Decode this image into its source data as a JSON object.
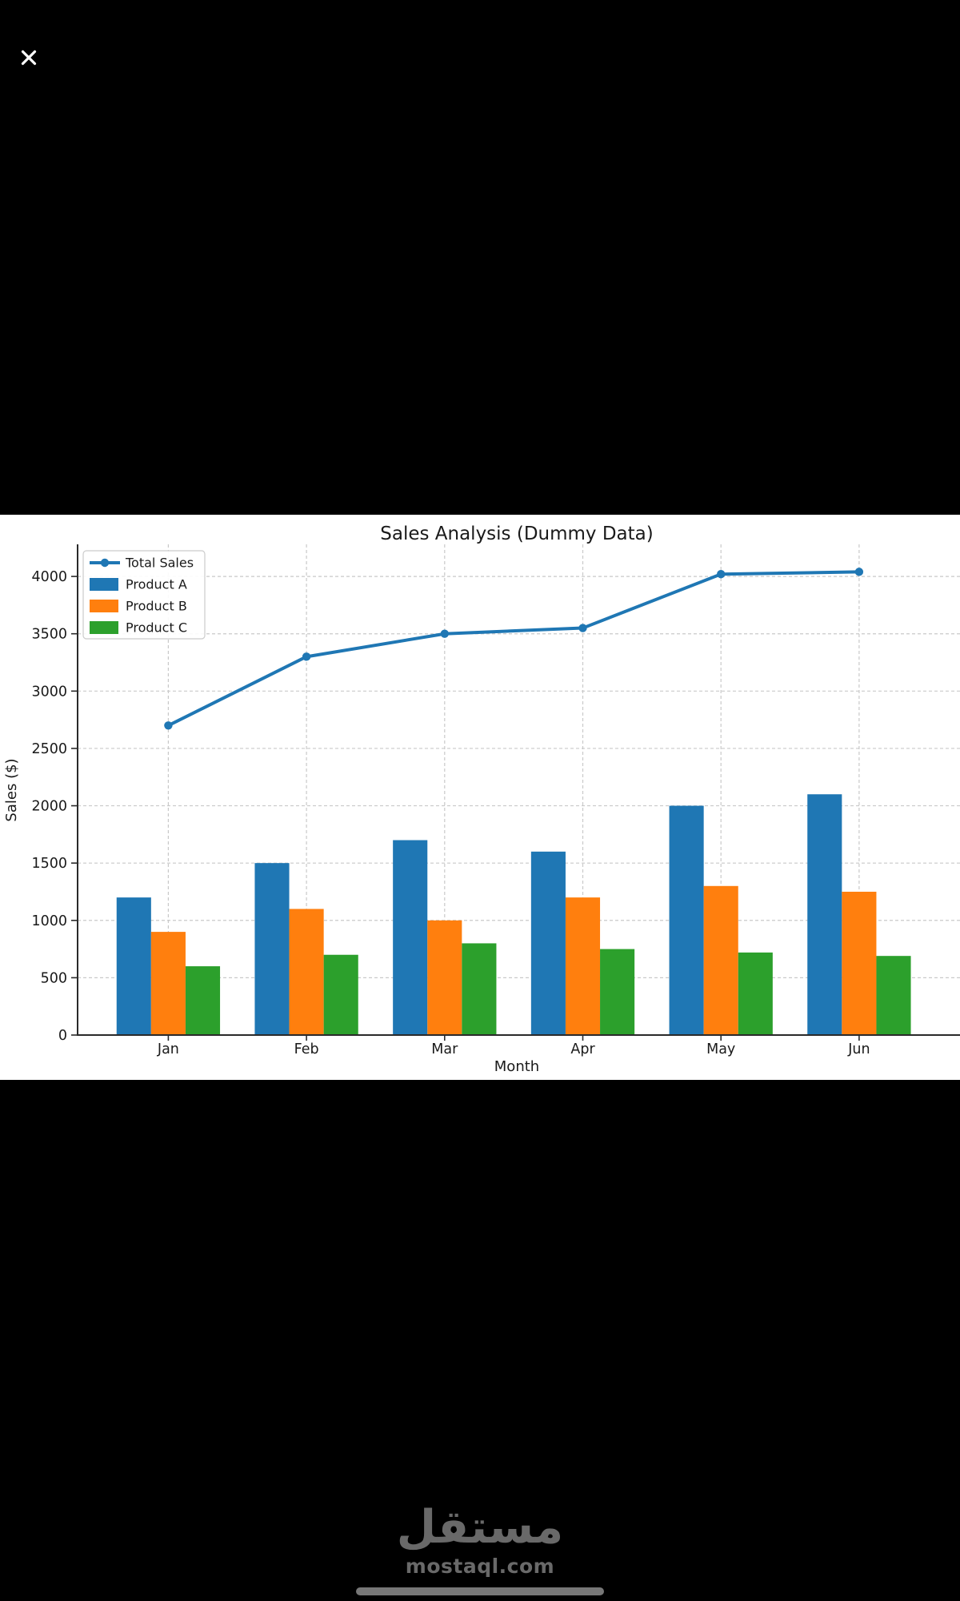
{
  "viewer": {
    "close_label": "Close",
    "watermark": {
      "logo_text": "مستقل",
      "site_text": "mostaql.com"
    },
    "colors": {
      "background": "#000000",
      "watermark_gray": "#696969",
      "home_indicator_gray": "#777777",
      "close_icon": "#ffffff"
    }
  },
  "chart_data": {
    "type": "bar",
    "subtype": "grouped bars with line overlay",
    "title": "Sales Analysis (Dummy Data)",
    "xlabel": "Month",
    "ylabel": "Sales ($)",
    "categories": [
      "Jan",
      "Feb",
      "Mar",
      "Apr",
      "May",
      "Jun"
    ],
    "series": [
      {
        "name": "Total Sales",
        "kind": "line",
        "color": "#1f77b4",
        "values": [
          2700,
          3300,
          3500,
          3550,
          4020,
          4040
        ]
      },
      {
        "name": "Product A",
        "kind": "bar",
        "color": "#1f77b4",
        "values": [
          1200,
          1500,
          1700,
          1600,
          2000,
          2100
        ]
      },
      {
        "name": "Product B",
        "kind": "bar",
        "color": "#ff7f0e",
        "values": [
          900,
          1100,
          1000,
          1200,
          1300,
          1250
        ]
      },
      {
        "name": "Product C",
        "kind": "bar",
        "color": "#2ca02c",
        "values": [
          600,
          700,
          800,
          750,
          720,
          690
        ]
      }
    ],
    "yticks": [
      0,
      500,
      1000,
      1500,
      2000,
      2500,
      3000,
      3500,
      4000
    ],
    "ylim": [
      0,
      4280
    ],
    "grid": true,
    "grid_style": "dashed",
    "legend_position": "upper left",
    "text_color": "#1a1a1a",
    "grid_color": "#c9c9c9",
    "spine_color": "#2a2a2a",
    "plot_background": "#ffffff"
  }
}
